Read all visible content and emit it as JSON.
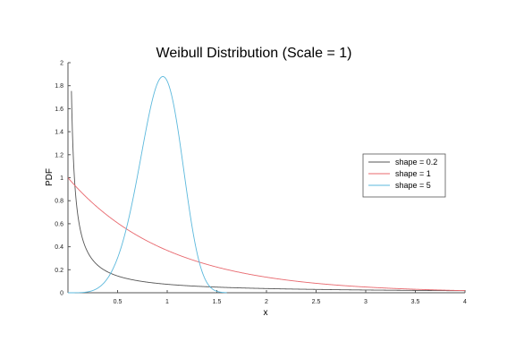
{
  "chart_data": {
    "type": "line",
    "title": "Weibull Distribution (Scale = 1)",
    "xlabel": "x",
    "ylabel": "PDF",
    "xlim": [
      0,
      4
    ],
    "ylim": [
      0,
      2
    ],
    "x_ticks": [
      "0.5",
      "1",
      "1.5",
      "2",
      "2.5",
      "3",
      "3.5",
      "4"
    ],
    "y_ticks": [
      "0",
      "0.2",
      "0.4",
      "0.6",
      "0.8",
      "1",
      "1.2",
      "1.4",
      "1.6",
      "1.8",
      "2"
    ],
    "grid": false,
    "legend_position": "right",
    "series": [
      {
        "name": "shape = 0.2",
        "color": "#555555",
        "x": [
          0.03,
          0.05,
          0.1,
          0.2,
          0.3,
          0.5,
          0.75,
          1,
          1.5,
          2,
          2.5,
          3,
          3.5,
          4
        ],
        "y": [
          1.44,
          0.77,
          0.32,
          0.125,
          0.071,
          0.0315,
          0.0153,
          0.0736,
          0.0052,
          0.0031,
          0.0021,
          0.0016,
          0.0012,
          0.001
        ]
      },
      {
        "name": "shape = 1",
        "color": "#e8686e",
        "x": [
          0,
          0.25,
          0.5,
          0.75,
          1,
          1.5,
          2,
          2.5,
          3,
          3.5,
          4
        ],
        "y": [
          1,
          0.779,
          0.607,
          0.472,
          0.368,
          0.223,
          0.135,
          0.082,
          0.05,
          0.03,
          0.018
        ]
      },
      {
        "name": "shape = 5",
        "color": "#5bb8dc",
        "x": [
          0,
          0.2,
          0.4,
          0.5,
          0.6,
          0.7,
          0.8,
          0.9,
          0.95,
          1,
          1.05,
          1.1,
          1.2,
          1.3,
          1.4,
          1.5,
          1.6
        ],
        "y": [
          0,
          0.008,
          0.127,
          0.303,
          0.599,
          1.013,
          1.468,
          1.811,
          1.873,
          1.839,
          1.669,
          1.301,
          0.681,
          0.115,
          0.0076,
          0.0002,
          0
        ]
      }
    ]
  }
}
